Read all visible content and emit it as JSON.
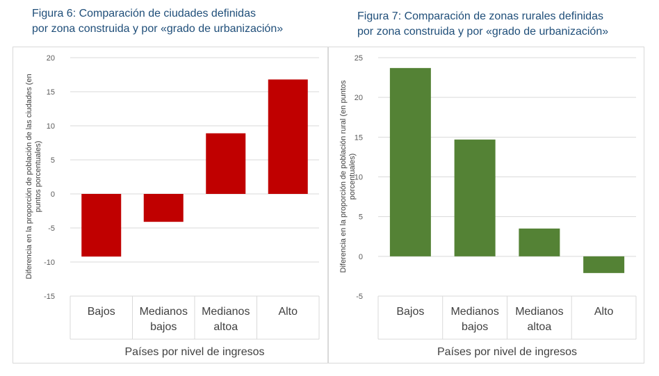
{
  "figures": [
    {
      "title_line1": "Figura 6: Comparación de ciudades definidas",
      "title_line2": "por zona construida y por «grado de urbanización»"
    },
    {
      "title_line1": "Figura 7: Comparación de zonas rurales definidas",
      "title_line2": "por zona construida y por «grado de urbanización»"
    }
  ],
  "chart_data": [
    {
      "type": "bar",
      "categories": [
        [
          "Bajos"
        ],
        [
          "Medianos",
          "bajos"
        ],
        [
          "Medianos",
          "altoa"
        ],
        [
          "Alto"
        ]
      ],
      "values": [
        -9.2,
        -4.1,
        8.9,
        16.8
      ],
      "ylabel_lines": [
        "Diferencia en la proporción de población de las ciudades (en",
        "puntos porcentuales)"
      ],
      "xlabel": "Países por nivel de ingresos",
      "ylim": [
        -15,
        20
      ],
      "yticks": [
        20,
        15,
        10,
        5,
        0,
        -5,
        -10,
        -15
      ],
      "ytick_labels": [
        "20",
        "15",
        "10",
        "5",
        "0",
        "-5",
        "-10",
        "-15"
      ],
      "grid": true,
      "color": "#c00000"
    },
    {
      "type": "bar",
      "categories": [
        [
          "Bajos"
        ],
        [
          "Medianos",
          "bajos"
        ],
        [
          "Medianos",
          "altoa"
        ],
        [
          "Alto"
        ]
      ],
      "values": [
        23.7,
        14.7,
        3.5,
        -2.1
      ],
      "ylabel_lines": [
        "Diferencia en la proporción de población rural (en puntos",
        "porcentuales)"
      ],
      "xlabel": "Países por nivel de ingresos",
      "ylim": [
        -5,
        25
      ],
      "yticks": [
        25,
        20,
        15,
        10,
        5,
        0,
        -5
      ],
      "ytick_labels": [
        "25",
        "20",
        "15",
        "10",
        "5",
        "0",
        "-5"
      ],
      "grid": true,
      "color": "#548235"
    }
  ]
}
